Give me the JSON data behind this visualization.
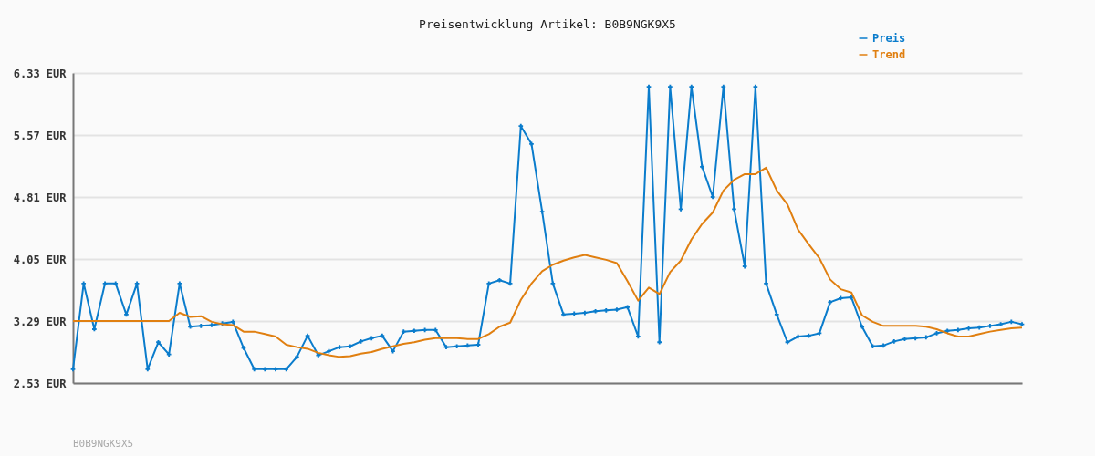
{
  "chart_data": {
    "type": "line",
    "title": "Preisentwicklung Artikel: B0B9NGK9X5",
    "annotations": [
      "B0B9NGK9X5"
    ],
    "categories": [
      null,
      null,
      null,
      null,
      null,
      null,
      null,
      null,
      null,
      null,
      null,
      null,
      null,
      null,
      null,
      null,
      null,
      null,
      null,
      null,
      null,
      null,
      null,
      null,
      null,
      null,
      null,
      null,
      null,
      null,
      null,
      null,
      null,
      null,
      null,
      null,
      null,
      null,
      null,
      null,
      null,
      null,
      null,
      null,
      null,
      null,
      null,
      null,
      null,
      null,
      null,
      null,
      null,
      null,
      null,
      null,
      null,
      null,
      null,
      null,
      null,
      null,
      null,
      null,
      null,
      null,
      null,
      null,
      null,
      null,
      null,
      null,
      null,
      null,
      null,
      null,
      null,
      null,
      null,
      null,
      null,
      null,
      null,
      null,
      null,
      null,
      null,
      null,
      null,
      null
    ],
    "series": [
      {
        "name": "Preis",
        "color": "#0a7ccc",
        "marker": "cross",
        "values": [
          2.7,
          3.75,
          3.19,
          3.75,
          3.75,
          3.37,
          3.75,
          2.7,
          3.03,
          2.88,
          3.75,
          3.22,
          3.23,
          3.24,
          3.26,
          3.28,
          2.96,
          2.7,
          2.7,
          2.7,
          2.7,
          2.85,
          3.11,
          2.87,
          2.92,
          2.97,
          2.98,
          3.04,
          3.08,
          3.11,
          2.92,
          3.16,
          3.17,
          3.18,
          3.18,
          2.97,
          2.98,
          2.99,
          3.0,
          3.75,
          3.79,
          3.75,
          5.68,
          5.46,
          4.63,
          3.75,
          3.37,
          3.38,
          3.39,
          3.41,
          3.42,
          3.43,
          3.46,
          3.1,
          6.16,
          3.03,
          6.16,
          4.66,
          6.16,
          5.18,
          4.81,
          6.16,
          4.66,
          3.96,
          6.16,
          3.75,
          3.37,
          3.03,
          3.1,
          3.11,
          3.14,
          3.52,
          3.57,
          3.58,
          3.22,
          2.98,
          2.99,
          3.04,
          3.07,
          3.08,
          3.09,
          3.14,
          3.17,
          3.18,
          3.2,
          3.21,
          3.23,
          3.25,
          3.28,
          3.25
        ]
      },
      {
        "name": "Trend",
        "color": "#e07f10",
        "marker": "none",
        "values": [
          3.29,
          3.29,
          3.29,
          3.29,
          3.29,
          3.29,
          3.29,
          3.29,
          3.29,
          3.29,
          3.39,
          3.34,
          3.35,
          3.28,
          3.25,
          3.24,
          3.16,
          3.16,
          3.13,
          3.1,
          3.0,
          2.97,
          2.95,
          2.9,
          2.87,
          2.85,
          2.86,
          2.89,
          2.91,
          2.95,
          2.98,
          3.01,
          3.03,
          3.06,
          3.08,
          3.08,
          3.08,
          3.07,
          3.07,
          3.13,
          3.22,
          3.27,
          3.55,
          3.75,
          3.9,
          3.98,
          4.03,
          4.07,
          4.1,
          4.07,
          4.04,
          4.0,
          3.78,
          3.54,
          3.7,
          3.62,
          3.89,
          4.03,
          4.29,
          4.48,
          4.62,
          4.89,
          5.02,
          5.09,
          5.09,
          5.17,
          4.89,
          4.72,
          4.41,
          4.23,
          4.06,
          3.8,
          3.68,
          3.64,
          3.36,
          3.28,
          3.23,
          3.23,
          3.23,
          3.23,
          3.22,
          3.19,
          3.14,
          3.1,
          3.1,
          3.13,
          3.16,
          3.18,
          3.2,
          3.21
        ]
      }
    ],
    "ylim": [
      2.53,
      6.33
    ],
    "yticks": [
      {
        "value": 2.53,
        "label": "2.53 EUR"
      },
      {
        "value": 3.29,
        "label": "3.29 EUR"
      },
      {
        "value": 4.05,
        "label": "4.05 EUR"
      },
      {
        "value": 4.81,
        "label": "4.81 EUR"
      },
      {
        "value": 5.57,
        "label": "5.57 EUR"
      },
      {
        "value": 6.33,
        "label": "6.33 EUR"
      }
    ],
    "grid": "y",
    "legend": "top right",
    "line_style": "solid"
  }
}
